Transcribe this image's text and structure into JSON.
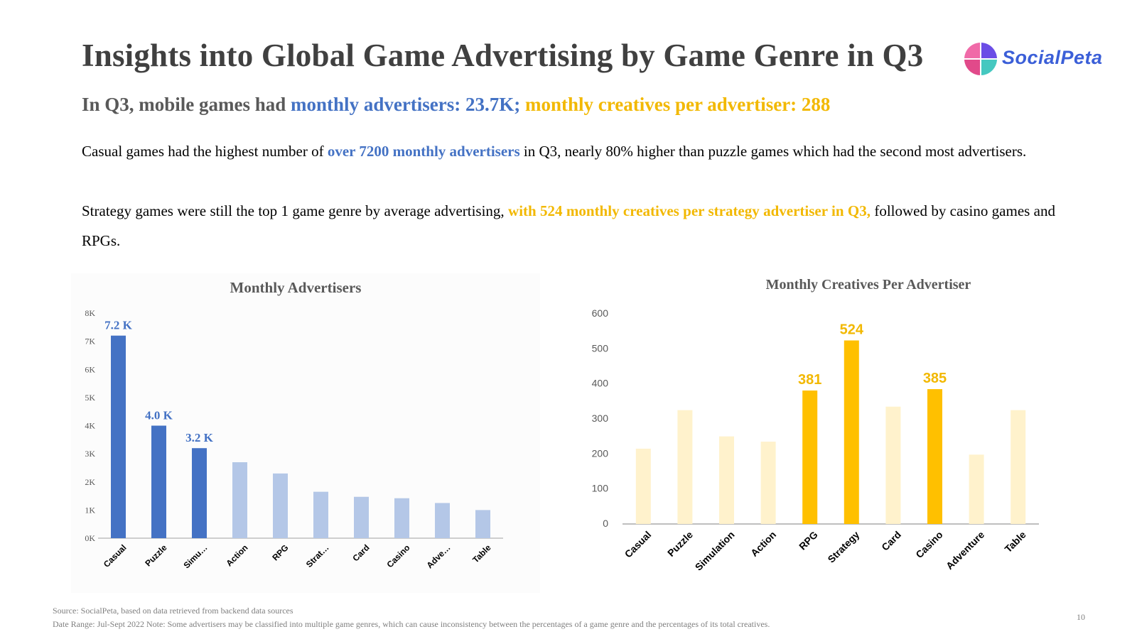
{
  "header": {
    "title": "Insights into Global Game Advertising by Game Genre in Q3",
    "logo_text": "SocialPeta"
  },
  "subtitle": {
    "part1": "In Q3, mobile games had ",
    "part2": "monthly advertisers: 23.7K;",
    "part3": " monthly creatives per advertiser: 288"
  },
  "body": {
    "p1_a": "Casual games had the highest number of ",
    "p1_b": "over 7200 monthly advertisers",
    "p1_c": " in Q3, nearly 80% higher than puzzle games which had the second most advertisers.",
    "p2_a": "Strategy games were still the top 1 game genre by average advertising, ",
    "p2_b": "with 524 monthly creatives per strategy advertiser in Q3,",
    "p2_c": " followed by casino games and RPGs."
  },
  "colors": {
    "blue": "#4472c4",
    "blue_light": "#b4c7e7",
    "gold": "#ffc000",
    "gold_light": "#fff2cc",
    "gold_text": "#f2b800"
  },
  "chart_data": [
    {
      "type": "bar",
      "title": "Monthly Advertisers",
      "categories": [
        "Casual",
        "Puzzle",
        "Simu…",
        "Action",
        "RPG",
        "Strat…",
        "Card",
        "Casino",
        "Adve…",
        "Table"
      ],
      "values": [
        7.2,
        4.0,
        3.2,
        2.7,
        2.3,
        1.65,
        1.47,
        1.42,
        1.25,
        1.0
      ],
      "data_labels": [
        "7.2 K",
        "4.0 K",
        "3.2 K",
        "",
        "",
        "",
        "",
        "",
        "",
        ""
      ],
      "highlighted": [
        true,
        true,
        true,
        false,
        false,
        false,
        false,
        false,
        false,
        false
      ],
      "yticks": [
        "0K",
        "1K",
        "2K",
        "3K",
        "4K",
        "5K",
        "6K",
        "7K",
        "8K"
      ],
      "ylim": [
        0,
        8
      ],
      "xlabel": "",
      "ylabel": ""
    },
    {
      "type": "bar",
      "title": "Monthly Creatives Per Advertiser",
      "categories": [
        "Casual",
        "Puzzle",
        "Simulation",
        "Action",
        "RPG",
        "Strategy",
        "Card",
        "Casino",
        "Adventure",
        "Table"
      ],
      "values": [
        215,
        325,
        250,
        235,
        381,
        524,
        335,
        385,
        198,
        325
      ],
      "data_labels": [
        "",
        "",
        "",
        "",
        "381",
        "524",
        "",
        "385",
        "",
        ""
      ],
      "highlighted": [
        false,
        false,
        false,
        false,
        true,
        true,
        false,
        true,
        false,
        false
      ],
      "yticks": [
        "0",
        "100",
        "200",
        "300",
        "400",
        "500",
        "600"
      ],
      "ylim": [
        0,
        600
      ],
      "xlabel": "",
      "ylabel": ""
    }
  ],
  "footer": {
    "source": "Source: SocialPeta, based on data retrieved from backend data sources",
    "note": "Date Range: Jul-Sept 2022  Note: Some advertisers may be classified into multiple game genres, which can cause inconsistency between the percentages of a game genre and the percentages of its total creatives.",
    "page": "10"
  }
}
